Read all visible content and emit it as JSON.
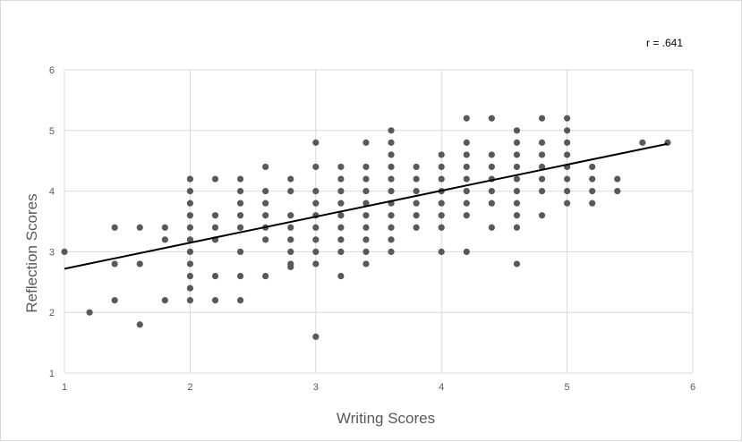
{
  "chart_data": {
    "type": "scatter",
    "title": "",
    "xlabel": "Writing Scores",
    "ylabel": "Reflection Scores",
    "xlim": [
      1,
      6
    ],
    "ylim": [
      1,
      6
    ],
    "xticks": [
      "1",
      "2",
      "3",
      "4",
      "5",
      "6"
    ],
    "yticks": [
      "1",
      "2",
      "3",
      "4",
      "5",
      "6"
    ],
    "grid": true,
    "annotation": "r = .641",
    "colors": {
      "points": "#595959",
      "trendline": "#000000",
      "grid": "#d9d9d9"
    },
    "trendline": {
      "x": [
        1,
        5.8
      ],
      "y": [
        2.72,
        4.78
      ]
    },
    "points": [
      [
        1.0,
        3.0
      ],
      [
        1.2,
        2.0
      ],
      [
        1.4,
        3.4
      ],
      [
        1.4,
        2.8
      ],
      [
        1.4,
        2.2
      ],
      [
        1.6,
        3.4
      ],
      [
        1.6,
        2.8
      ],
      [
        1.6,
        1.8
      ],
      [
        1.8,
        3.4
      ],
      [
        1.8,
        3.2
      ],
      [
        1.8,
        2.2
      ],
      [
        2.0,
        4.2
      ],
      [
        2.0,
        4.0
      ],
      [
        2.0,
        3.8
      ],
      [
        2.0,
        3.6
      ],
      [
        2.0,
        3.4
      ],
      [
        2.0,
        3.2
      ],
      [
        2.0,
        3.0
      ],
      [
        2.0,
        2.8
      ],
      [
        2.0,
        2.6
      ],
      [
        2.0,
        2.4
      ],
      [
        2.0,
        2.2
      ],
      [
        2.2,
        4.2
      ],
      [
        2.2,
        3.6
      ],
      [
        2.2,
        3.4
      ],
      [
        2.2,
        3.2
      ],
      [
        2.2,
        2.6
      ],
      [
        2.2,
        2.2
      ],
      [
        2.4,
        4.2
      ],
      [
        2.4,
        4.0
      ],
      [
        2.4,
        3.8
      ],
      [
        2.4,
        3.6
      ],
      [
        2.4,
        3.4
      ],
      [
        2.4,
        3.0
      ],
      [
        2.4,
        2.6
      ],
      [
        2.4,
        2.2
      ],
      [
        2.6,
        4.4
      ],
      [
        2.6,
        4.0
      ],
      [
        2.6,
        3.8
      ],
      [
        2.6,
        3.6
      ],
      [
        2.6,
        3.4
      ],
      [
        2.6,
        3.2
      ],
      [
        2.6,
        2.6
      ],
      [
        2.8,
        4.2
      ],
      [
        2.8,
        4.0
      ],
      [
        2.8,
        3.6
      ],
      [
        2.8,
        3.4
      ],
      [
        2.8,
        3.2
      ],
      [
        2.8,
        3.0
      ],
      [
        2.8,
        2.8
      ],
      [
        2.8,
        2.75
      ],
      [
        3.0,
        4.8
      ],
      [
        3.0,
        4.4
      ],
      [
        3.0,
        4.0
      ],
      [
        3.0,
        3.8
      ],
      [
        3.0,
        3.6
      ],
      [
        3.0,
        3.4
      ],
      [
        3.0,
        3.2
      ],
      [
        3.0,
        3.0
      ],
      [
        3.0,
        2.8
      ],
      [
        3.0,
        1.6
      ],
      [
        3.2,
        4.4
      ],
      [
        3.2,
        4.2
      ],
      [
        3.2,
        4.0
      ],
      [
        3.2,
        3.8
      ],
      [
        3.2,
        3.6
      ],
      [
        3.2,
        3.4
      ],
      [
        3.2,
        3.2
      ],
      [
        3.2,
        3.0
      ],
      [
        3.2,
        2.6
      ],
      [
        3.4,
        4.8
      ],
      [
        3.4,
        4.4
      ],
      [
        3.4,
        4.2
      ],
      [
        3.4,
        4.0
      ],
      [
        3.4,
        3.8
      ],
      [
        3.4,
        3.6
      ],
      [
        3.4,
        3.4
      ],
      [
        3.4,
        3.2
      ],
      [
        3.4,
        3.0
      ],
      [
        3.4,
        2.8
      ],
      [
        3.6,
        5.0
      ],
      [
        3.6,
        4.8
      ],
      [
        3.6,
        4.6
      ],
      [
        3.6,
        4.4
      ],
      [
        3.6,
        4.2
      ],
      [
        3.6,
        4.0
      ],
      [
        3.6,
        3.8
      ],
      [
        3.6,
        3.6
      ],
      [
        3.6,
        3.4
      ],
      [
        3.6,
        3.2
      ],
      [
        3.6,
        3.0
      ],
      [
        3.8,
        4.4
      ],
      [
        3.8,
        4.2
      ],
      [
        3.8,
        4.0
      ],
      [
        3.8,
        3.8
      ],
      [
        3.8,
        3.6
      ],
      [
        3.8,
        3.4
      ],
      [
        4.0,
        4.6
      ],
      [
        4.0,
        4.4
      ],
      [
        4.0,
        4.2
      ],
      [
        4.0,
        4.0
      ],
      [
        4.0,
        3.8
      ],
      [
        4.0,
        3.6
      ],
      [
        4.0,
        3.4
      ],
      [
        4.0,
        3.0
      ],
      [
        4.2,
        5.2
      ],
      [
        4.2,
        4.8
      ],
      [
        4.2,
        4.6
      ],
      [
        4.2,
        4.4
      ],
      [
        4.2,
        4.2
      ],
      [
        4.2,
        4.0
      ],
      [
        4.2,
        3.8
      ],
      [
        4.2,
        3.6
      ],
      [
        4.2,
        3.0
      ],
      [
        4.4,
        5.2
      ],
      [
        4.4,
        4.6
      ],
      [
        4.4,
        4.4
      ],
      [
        4.4,
        4.2
      ],
      [
        4.4,
        4.0
      ],
      [
        4.4,
        3.8
      ],
      [
        4.4,
        3.4
      ],
      [
        4.6,
        5.0
      ],
      [
        4.6,
        4.8
      ],
      [
        4.6,
        4.6
      ],
      [
        4.6,
        4.4
      ],
      [
        4.6,
        4.2
      ],
      [
        4.6,
        4.0
      ],
      [
        4.6,
        3.8
      ],
      [
        4.6,
        3.6
      ],
      [
        4.6,
        3.4
      ],
      [
        4.6,
        2.8
      ],
      [
        4.8,
        5.2
      ],
      [
        4.8,
        4.8
      ],
      [
        4.8,
        4.6
      ],
      [
        4.8,
        4.4
      ],
      [
        4.8,
        4.2
      ],
      [
        4.8,
        4.0
      ],
      [
        4.8,
        3.6
      ],
      [
        5.0,
        5.2
      ],
      [
        5.0,
        5.0
      ],
      [
        5.0,
        4.8
      ],
      [
        5.0,
        4.6
      ],
      [
        5.0,
        4.4
      ],
      [
        5.0,
        4.2
      ],
      [
        5.0,
        4.0
      ],
      [
        5.0,
        3.8
      ],
      [
        5.2,
        4.4
      ],
      [
        5.2,
        4.2
      ],
      [
        5.2,
        4.0
      ],
      [
        5.2,
        3.8
      ],
      [
        5.4,
        4.2
      ],
      [
        5.4,
        4.0
      ],
      [
        5.6,
        4.8
      ],
      [
        5.8,
        4.8
      ]
    ]
  }
}
